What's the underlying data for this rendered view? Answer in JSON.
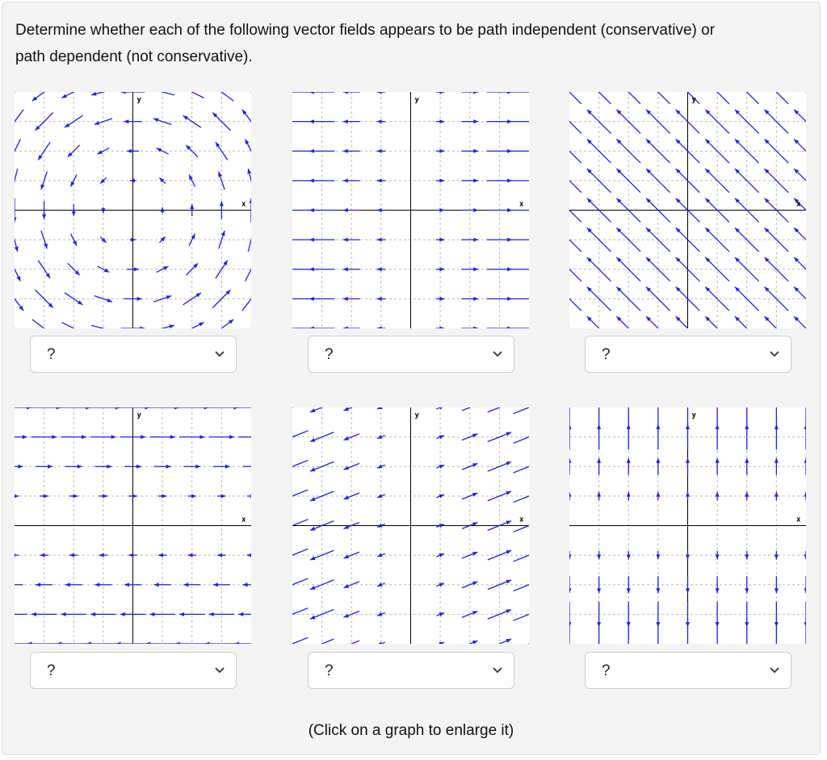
{
  "prompt": "Determine whether each of the following vector fields appears to be path independent (conservative) or path dependent (not conservative).",
  "graphs": [
    {
      "y_label": "y",
      "x_label": "x",
      "dropdown": "?"
    },
    {
      "y_label": "y",
      "x_label": "x",
      "dropdown": "?"
    },
    {
      "y_label": "y",
      "x_label": "x",
      "dropdown": "?"
    },
    {
      "y_label": "y",
      "x_label": "x",
      "dropdown": "?"
    },
    {
      "y_label": "y",
      "x_label": "x",
      "dropdown": "?"
    },
    {
      "y_label": "y",
      "x_label": "x",
      "dropdown": "?"
    }
  ],
  "footer": "(Click on a graph to enlarge it)"
}
